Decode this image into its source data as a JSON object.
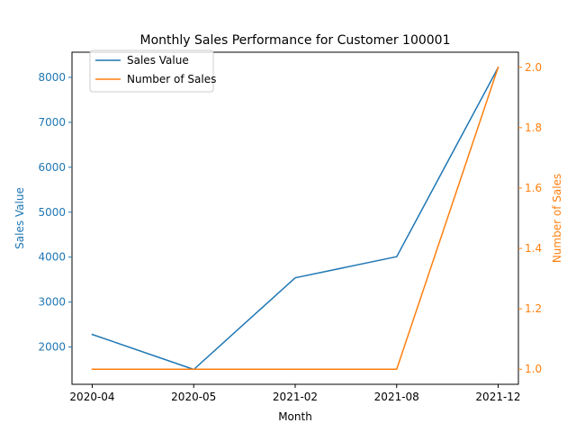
{
  "chart_data": {
    "type": "line",
    "title": "Monthly Sales Performance for Customer 100001",
    "xlabel": "Month",
    "categories": [
      "2020-04",
      "2020-05",
      "2021-02",
      "2021-08",
      "2021-12"
    ],
    "y_left": {
      "label": "Sales Value",
      "lim": [
        1170,
        8560
      ],
      "ticks": [
        2000,
        3000,
        4000,
        5000,
        6000,
        7000,
        8000
      ],
      "color": "#1f77b4"
    },
    "y_right": {
      "label": "Number of Sales",
      "lim": [
        0.95,
        2.05
      ],
      "ticks": [
        "1.0",
        "1.2",
        "1.4",
        "1.6",
        "1.8",
        "2.0"
      ],
      "color": "#ff7f0e"
    },
    "series": [
      {
        "name": "Sales Value",
        "axis": "left",
        "color": "#1f77b4",
        "values": [
          2280,
          1500,
          3540,
          4010,
          8220
        ]
      },
      {
        "name": "Number of Sales",
        "axis": "right",
        "color": "#ff7f0e",
        "values": [
          1,
          1,
          1,
          1,
          2
        ]
      }
    ],
    "legend": "top-left",
    "grid": false
  }
}
